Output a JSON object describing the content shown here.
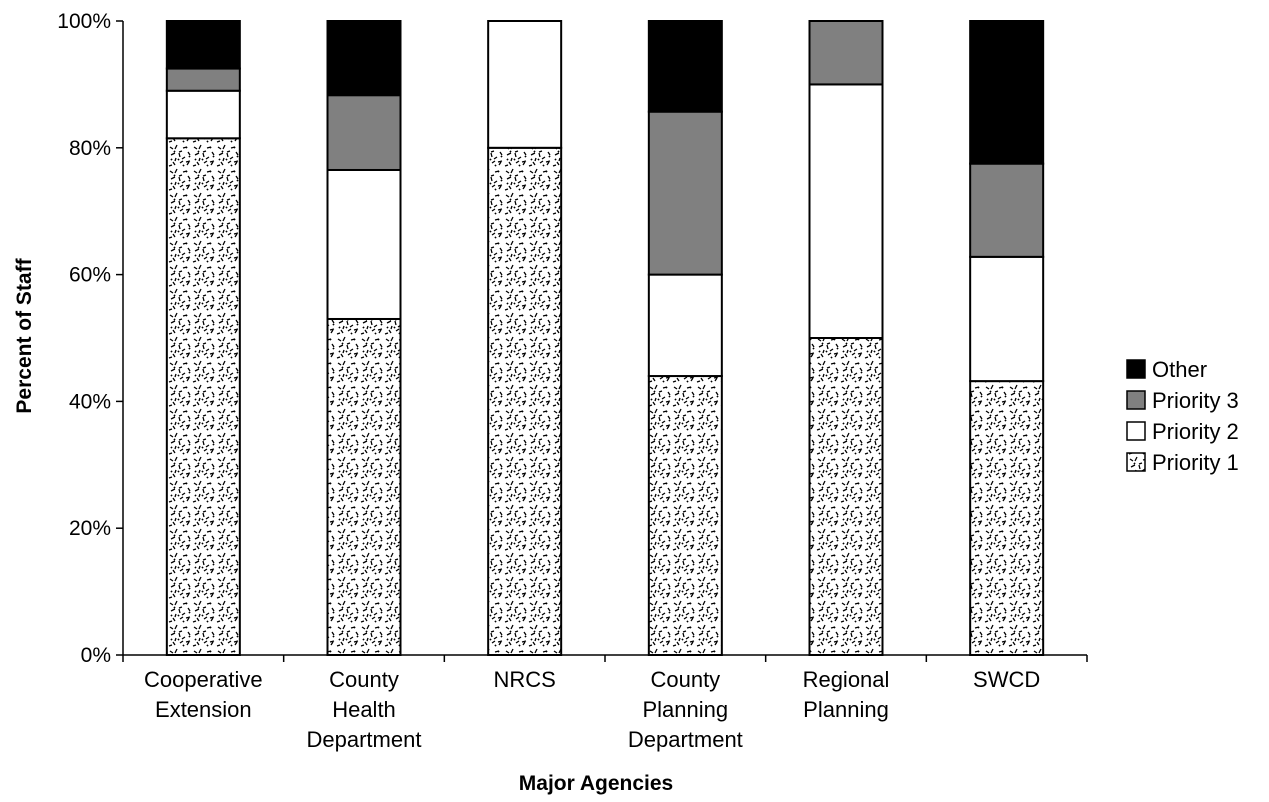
{
  "chart_data": {
    "type": "bar",
    "stacked": true,
    "title": "",
    "xlabel": "Major Agencies",
    "ylabel": "Percent of Staff",
    "ylim": [
      0,
      100
    ],
    "yticks": [
      "0%",
      "20%",
      "40%",
      "60%",
      "80%",
      "100%"
    ],
    "categories": [
      [
        "Cooperative",
        "Extension"
      ],
      [
        "County",
        "Health",
        "Department"
      ],
      [
        "NRCS"
      ],
      [
        "County",
        "Planning",
        "Department"
      ],
      [
        "Regional",
        "Planning"
      ],
      [
        "SWCD"
      ]
    ],
    "series": [
      {
        "name": "Priority 1",
        "fill": "pattern",
        "values": [
          81.5,
          53,
          80,
          44,
          50,
          43.2
        ]
      },
      {
        "name": "Priority 2",
        "fill": "#ffffff",
        "values": [
          7.5,
          23.5,
          20,
          16,
          40,
          19.6
        ]
      },
      {
        "name": "Priority 3",
        "fill": "#808080",
        "values": [
          3.5,
          11.8,
          0,
          25.7,
          10,
          14.7
        ]
      },
      {
        "name": "Other",
        "fill": "#000000",
        "values": [
          7.5,
          11.7,
          0,
          14.3,
          0,
          22.5
        ]
      }
    ],
    "legend_order": [
      "Other",
      "Priority 3",
      "Priority 2",
      "Priority 1"
    ],
    "legend_position": "right",
    "grid": false
  }
}
